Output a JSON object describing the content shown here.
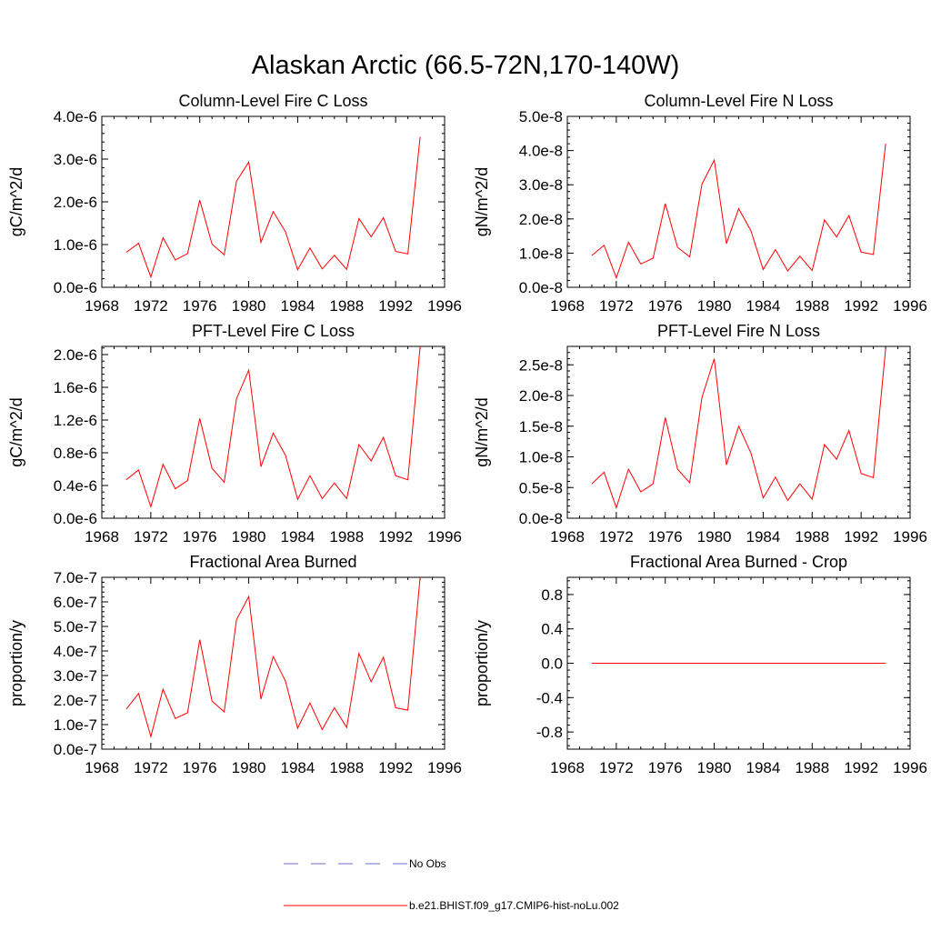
{
  "figure_title": "Alaskan Arctic (66.5-72N,170-140W)",
  "legend": {
    "entries": [
      {
        "label": "No Obs",
        "color": "#6a6acd",
        "style": "dashed"
      },
      {
        "label": "b.e21.BHIST.f09_g17.CMIP6-hist-noLu.002",
        "color": "#ff0000",
        "style": "solid"
      }
    ]
  },
  "chart_data": [
    {
      "type": "line",
      "title": "Column-Level Fire C Loss",
      "xlabel": "",
      "ylabel": "gC/m^2/d",
      "xlim": [
        1968,
        1996
      ],
      "ylim": [
        0,
        4e-06
      ],
      "x_ticks": [
        1968,
        1972,
        1976,
        1980,
        1984,
        1988,
        1992,
        1996
      ],
      "x_tick_labels": [
        "1968",
        "1972",
        "1976",
        "1980",
        "1984",
        "1988",
        "1992",
        "1996"
      ],
      "y_ticks": [
        0,
        1e-06,
        2e-06,
        3e-06,
        4e-06
      ],
      "y_tick_labels": [
        "0.0e-6",
        "1.0e-6",
        "2.0e-6",
        "3.0e-6",
        "4.0e-6"
      ],
      "series": [
        {
          "name": "b.e21.BHIST.f09_g17.CMIP6-hist-noLu.002",
          "color": "#ff0000",
          "x": [
            1970,
            1971,
            1972,
            1973,
            1974,
            1975,
            1976,
            1977,
            1978,
            1979,
            1980,
            1981,
            1982,
            1983,
            1984,
            1985,
            1986,
            1987,
            1988,
            1989,
            1990,
            1991,
            1992,
            1993,
            1994
          ],
          "y": [
            8.2e-07,
            1.03e-06,
            2.4e-07,
            1.16e-06,
            6.4e-07,
            7.9e-07,
            2.04e-06,
            1.01e-06,
            7.6e-07,
            2.48e-06,
            2.93e-06,
            1.05e-06,
            1.77e-06,
            1.3e-06,
            4.1e-07,
            9.2e-07,
            4.3e-07,
            7.5e-07,
            4.2e-07,
            1.61e-06,
            1.18e-06,
            1.63e-06,
            8.4e-07,
            7.8e-07,
            3.52e-06
          ]
        }
      ]
    },
    {
      "type": "line",
      "title": "Column-Level Fire N Loss",
      "xlabel": "",
      "ylabel": "gN/m^2/d",
      "xlim": [
        1968,
        1996
      ],
      "ylim": [
        0,
        5e-08
      ],
      "x_ticks": [
        1968,
        1972,
        1976,
        1980,
        1984,
        1988,
        1992,
        1996
      ],
      "x_tick_labels": [
        "1968",
        "1972",
        "1976",
        "1980",
        "1984",
        "1988",
        "1992",
        "1996"
      ],
      "y_ticks": [
        0,
        1e-08,
        2e-08,
        3e-08,
        4e-08,
        5e-08
      ],
      "y_tick_labels": [
        "0.0e-8",
        "1.0e-8",
        "2.0e-8",
        "3.0e-8",
        "4.0e-8",
        "5.0e-8"
      ],
      "series": [
        {
          "name": "b.e21.BHIST.f09_g17.CMIP6-hist-noLu.002",
          "color": "#ff0000",
          "x": [
            1970,
            1971,
            1972,
            1973,
            1974,
            1975,
            1976,
            1977,
            1978,
            1979,
            1980,
            1981,
            1982,
            1983,
            1984,
            1985,
            1986,
            1987,
            1988,
            1989,
            1990,
            1991,
            1992,
            1993,
            1994
          ],
          "y": [
            9.3e-09,
            1.23e-08,
            2.8e-09,
            1.32e-08,
            6.8e-09,
            8.5e-09,
            2.45e-08,
            1.17e-08,
            8.9e-09,
            3.02e-08,
            3.72e-08,
            1.28e-08,
            2.3e-08,
            1.65e-08,
            5.2e-09,
            1.1e-08,
            4.8e-09,
            9.1e-09,
            4.9e-09,
            1.97e-08,
            1.47e-08,
            2.1e-08,
            1.03e-08,
            9.6e-09,
            4.2e-08
          ]
        }
      ]
    },
    {
      "type": "line",
      "title": "PFT-Level Fire C Loss",
      "xlabel": "",
      "ylabel": "gC/m^2/d",
      "xlim": [
        1968,
        1996
      ],
      "ylim": [
        0,
        2.1e-06
      ],
      "x_ticks": [
        1968,
        1972,
        1976,
        1980,
        1984,
        1988,
        1992,
        1996
      ],
      "x_tick_labels": [
        "1968",
        "1972",
        "1976",
        "1980",
        "1984",
        "1988",
        "1992",
        "1996"
      ],
      "y_ticks": [
        0,
        4e-07,
        8e-07,
        1.2e-06,
        1.6e-06,
        2e-06
      ],
      "y_tick_labels": [
        "0.0e-6",
        "0.4e-6",
        "0.8e-6",
        "1.2e-6",
        "1.6e-6",
        "2.0e-6"
      ],
      "series": [
        {
          "name": "b.e21.BHIST.f09_g17.CMIP6-hist-noLu.002",
          "color": "#ff0000",
          "x": [
            1970,
            1971,
            1972,
            1973,
            1974,
            1975,
            1976,
            1977,
            1978,
            1979,
            1980,
            1981,
            1982,
            1983,
            1984,
            1985,
            1986,
            1987,
            1988,
            1989,
            1990,
            1991,
            1992,
            1993,
            1994
          ],
          "y": [
            4.7e-07,
            5.9e-07,
            1.4e-07,
            6.6e-07,
            3.6e-07,
            4.6e-07,
            1.22e-06,
            6.1e-07,
            4.4e-07,
            1.46e-06,
            1.81e-06,
            6.3e-07,
            1.04e-06,
            7.7e-07,
            2.3e-07,
            5.2e-07,
            2.4e-07,
            4.3e-07,
            2.4e-07,
            9e-07,
            7e-07,
            9.9e-07,
            5.2e-07,
            4.7e-07,
            2.1e-06
          ]
        }
      ]
    },
    {
      "type": "line",
      "title": "PFT-Level Fire N Loss",
      "xlabel": "",
      "ylabel": "gN/m^2/d",
      "xlim": [
        1968,
        1996
      ],
      "ylim": [
        0,
        2.8e-08
      ],
      "x_ticks": [
        1968,
        1972,
        1976,
        1980,
        1984,
        1988,
        1992,
        1996
      ],
      "x_tick_labels": [
        "1968",
        "1972",
        "1976",
        "1980",
        "1984",
        "1988",
        "1992",
        "1996"
      ],
      "y_ticks": [
        0,
        5e-09,
        1e-08,
        1.5e-08,
        2e-08,
        2.5e-08
      ],
      "y_tick_labels": [
        "0.0e-8",
        "0.5e-8",
        "1.0e-8",
        "1.5e-8",
        "2.0e-8",
        "2.5e-8"
      ],
      "series": [
        {
          "name": "b.e21.BHIST.f09_g17.CMIP6-hist-noLu.002",
          "color": "#ff0000",
          "x": [
            1970,
            1971,
            1972,
            1973,
            1974,
            1975,
            1976,
            1977,
            1978,
            1979,
            1980,
            1981,
            1982,
            1983,
            1984,
            1985,
            1986,
            1987,
            1988,
            1989,
            1990,
            1991,
            1992,
            1993,
            1994
          ],
          "y": [
            5.6e-09,
            7.5e-09,
            1.7e-09,
            8e-09,
            4.3e-09,
            5.6e-09,
            1.64e-08,
            8e-09,
            5.8e-09,
            1.97e-08,
            2.6e-08,
            8.7e-09,
            1.5e-08,
            1.06e-08,
            3.3e-09,
            6.7e-09,
            2.9e-09,
            5.6e-09,
            3.1e-09,
            1.2e-08,
            9.6e-09,
            1.43e-08,
            7.3e-09,
            6.6e-09,
            2.76e-08
          ]
        }
      ]
    },
    {
      "type": "line",
      "title": "Fractional Area Burned",
      "xlabel": "",
      "ylabel": "proportion/y",
      "xlim": [
        1968,
        1996
      ],
      "ylim": [
        0,
        7e-07
      ],
      "x_ticks": [
        1968,
        1972,
        1976,
        1980,
        1984,
        1988,
        1992,
        1996
      ],
      "x_tick_labels": [
        "1968",
        "1972",
        "1976",
        "1980",
        "1984",
        "1988",
        "1992",
        "1996"
      ],
      "y_ticks": [
        0,
        1e-07,
        2e-07,
        3e-07,
        4e-07,
        5e-07,
        6e-07,
        7e-07
      ],
      "y_tick_labels": [
        "0.0e-7",
        "1.0e-7",
        "2.0e-7",
        "3.0e-7",
        "4.0e-7",
        "5.0e-7",
        "6.0e-7",
        "7.0e-7"
      ],
      "series": [
        {
          "name": "b.e21.BHIST.f09_g17.CMIP6-hist-noLu.002",
          "color": "#ff0000",
          "x": [
            1970,
            1971,
            1972,
            1973,
            1974,
            1975,
            1976,
            1977,
            1978,
            1979,
            1980,
            1981,
            1982,
            1983,
            1984,
            1985,
            1986,
            1987,
            1988,
            1989,
            1990,
            1991,
            1992,
            1993,
            1994
          ],
          "y": [
            1.63e-07,
            2.27e-07,
            5.1e-08,
            2.45e-07,
            1.25e-07,
            1.48e-07,
            4.46e-07,
            1.96e-07,
            1.52e-07,
            5.27e-07,
            6.22e-07,
            2.04e-07,
            3.77e-07,
            2.77e-07,
            8.5e-08,
            1.88e-07,
            8e-08,
            1.69e-07,
            8.8e-08,
            3.9e-07,
            2.75e-07,
            3.75e-07,
            1.69e-07,
            1.59e-07,
            7e-07
          ]
        }
      ]
    },
    {
      "type": "line",
      "title": "Fractional Area Burned - Crop",
      "xlabel": "",
      "ylabel": "proportion/y",
      "xlim": [
        1968,
        1996
      ],
      "ylim": [
        -1.0,
        1.0
      ],
      "x_ticks": [
        1968,
        1972,
        1976,
        1980,
        1984,
        1988,
        1992,
        1996
      ],
      "x_tick_labels": [
        "1968",
        "1972",
        "1976",
        "1980",
        "1984",
        "1988",
        "1992",
        "1996"
      ],
      "y_ticks": [
        -0.8,
        -0.4,
        0.0,
        0.4,
        0.8
      ],
      "y_tick_labels": [
        "-0.8",
        "-0.4",
        "0.0",
        "0.4",
        "0.8"
      ],
      "series": [
        {
          "name": "b.e21.BHIST.f09_g17.CMIP6-hist-noLu.002",
          "color": "#ff0000",
          "x": [
            1970,
            1994
          ],
          "y": [
            0.0,
            0.0
          ]
        }
      ]
    }
  ]
}
